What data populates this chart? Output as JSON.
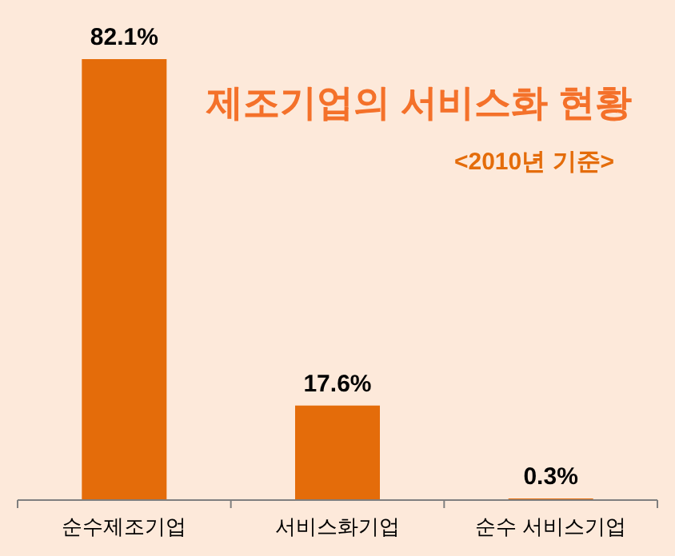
{
  "chart_data": {
    "type": "bar",
    "title": "제조기업의 서비스화 현황",
    "subtitle": "<2010년 기준>",
    "categories": [
      "순수제조기업",
      "서비스화기업",
      "순수 서비스기업"
    ],
    "values": [
      82.1,
      17.6,
      0.3
    ],
    "value_labels": [
      "82.1%",
      "17.6%",
      "0.3%"
    ],
    "color": "#e46c0a"
  }
}
